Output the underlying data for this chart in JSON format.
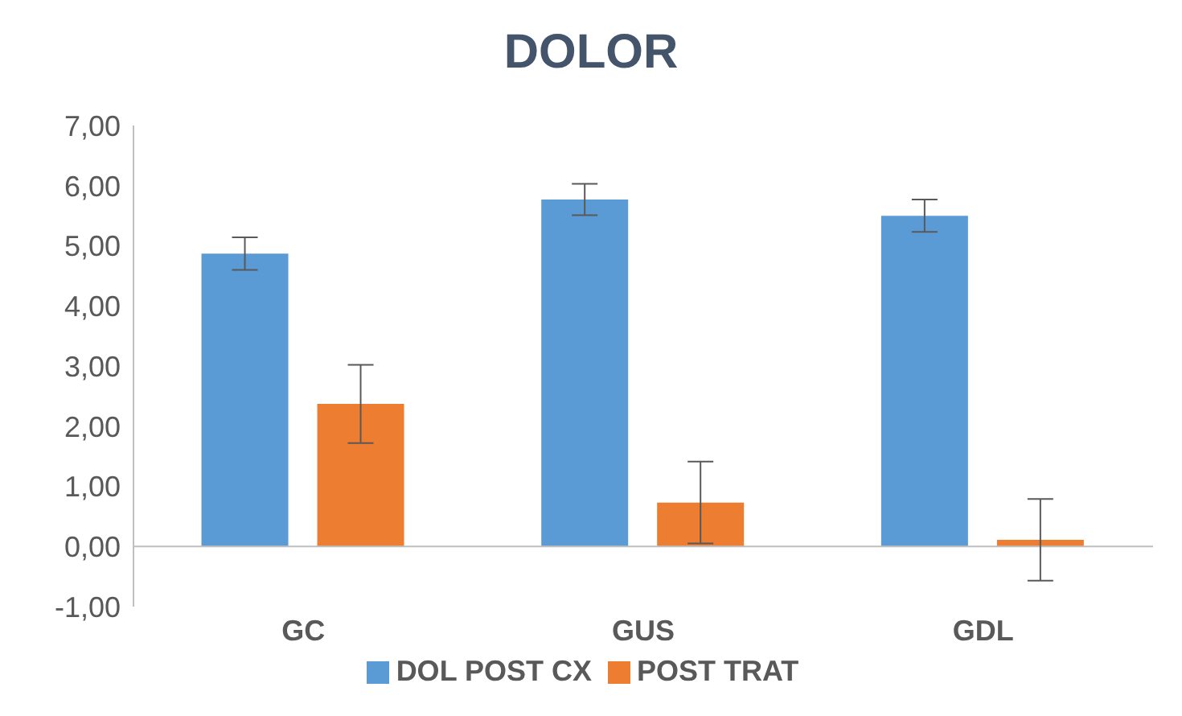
{
  "chart_data": {
    "type": "bar",
    "title": "DOLOR",
    "categories": [
      "GC",
      "GUS",
      "GDL"
    ],
    "series": [
      {
        "name": "DOL POST CX",
        "color": "#5b9bd5",
        "values": [
          4.87,
          5.77,
          5.5
        ],
        "errors": [
          0.27,
          0.26,
          0.27
        ]
      },
      {
        "name": "POST TRAT",
        "color": "#ed7d31",
        "values": [
          2.37,
          0.73,
          0.11
        ],
        "errors": [
          0.65,
          0.68,
          0.68
        ]
      }
    ],
    "ylim": [
      -1,
      7
    ],
    "yticks": [
      {
        "value": -1,
        "label": "-1,00"
      },
      {
        "value": 0,
        "label": "0,00"
      },
      {
        "value": 1,
        "label": "1,00"
      },
      {
        "value": 2,
        "label": "2,00"
      },
      {
        "value": 3,
        "label": "3,00"
      },
      {
        "value": 4,
        "label": "4,00"
      },
      {
        "value": 5,
        "label": "5,00"
      },
      {
        "value": 6,
        "label": "6,00"
      },
      {
        "value": 7,
        "label": "7,00"
      }
    ],
    "grid": false,
    "legend": "bottom"
  }
}
